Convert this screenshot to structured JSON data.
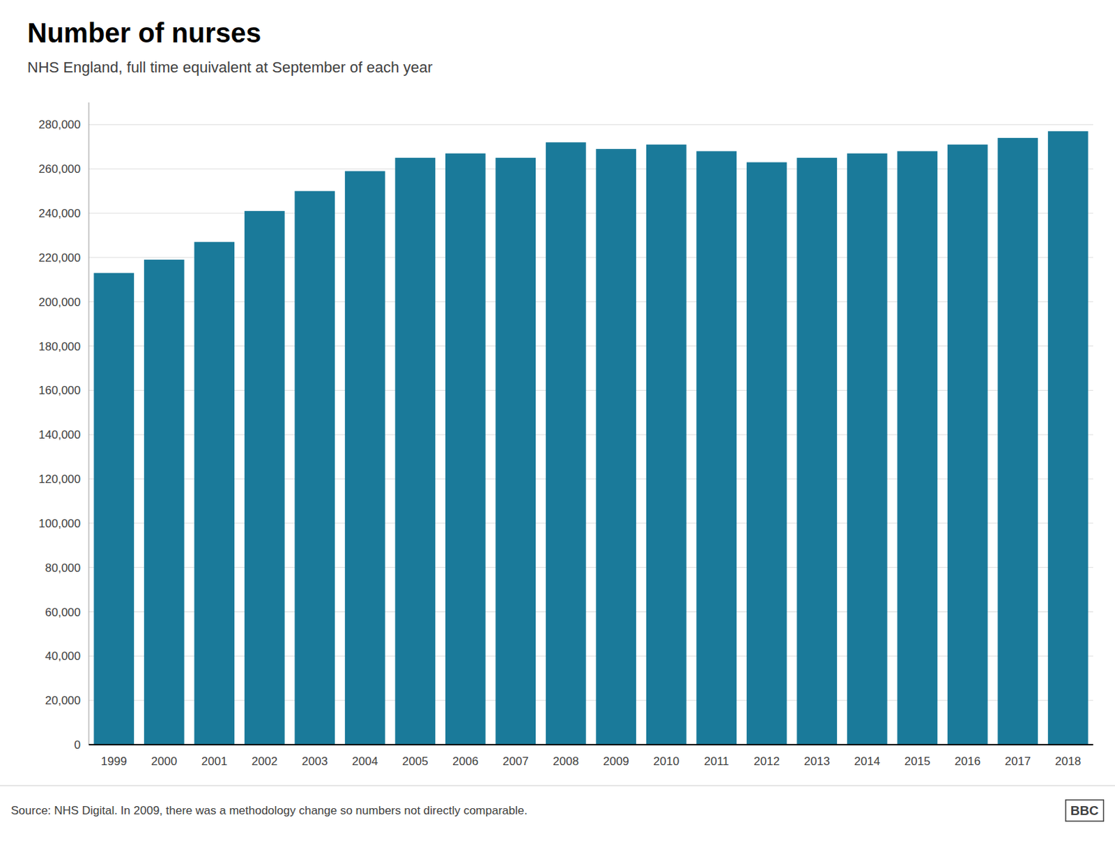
{
  "chart_data": {
    "type": "bar",
    "title": "Number of nurses",
    "subtitle": "NHS England, full time equivalent at September of each year",
    "categories": [
      "1999",
      "2000",
      "2001",
      "2002",
      "2003",
      "2004",
      "2005",
      "2006",
      "2007",
      "2008",
      "2009",
      "2010",
      "2011",
      "2012",
      "2013",
      "2014",
      "2015",
      "2016",
      "2017",
      "2018"
    ],
    "values": [
      213000,
      219000,
      227000,
      241000,
      250000,
      259000,
      265000,
      267000,
      265000,
      272000,
      269000,
      271000,
      268000,
      263000,
      265000,
      267000,
      268000,
      271000,
      274000,
      277000
    ],
    "color": "#1a7a9a",
    "ylim": [
      0,
      290000
    ],
    "yticks": [
      0,
      {
        "value": 20000,
        "label": "20,000"
      },
      {
        "value": 40000,
        "label": "40,000"
      },
      {
        "value": 60000,
        "label": "60,000"
      },
      {
        "value": 80000,
        "label": "80,000"
      },
      {
        "value": 100000,
        "label": "100,000"
      },
      {
        "value": 120000,
        "label": "120,000"
      },
      {
        "value": 140000,
        "label": "140,000"
      },
      {
        "value": 160000,
        "label": "160,000"
      },
      {
        "value": 180000,
        "label": "180,000"
      },
      {
        "value": 200000,
        "label": "200,000"
      },
      {
        "value": 220000,
        "label": "220,000"
      },
      {
        "value": 240000,
        "label": "240,000"
      },
      {
        "value": 260000,
        "label": "260,000"
      },
      {
        "value": 280000,
        "label": "280,000"
      }
    ],
    "grid": true,
    "annotations": [
      "Source: NHS Digital. In 2009, there was a methodology change so numbers not directly comparable.",
      "BBC"
    ]
  }
}
